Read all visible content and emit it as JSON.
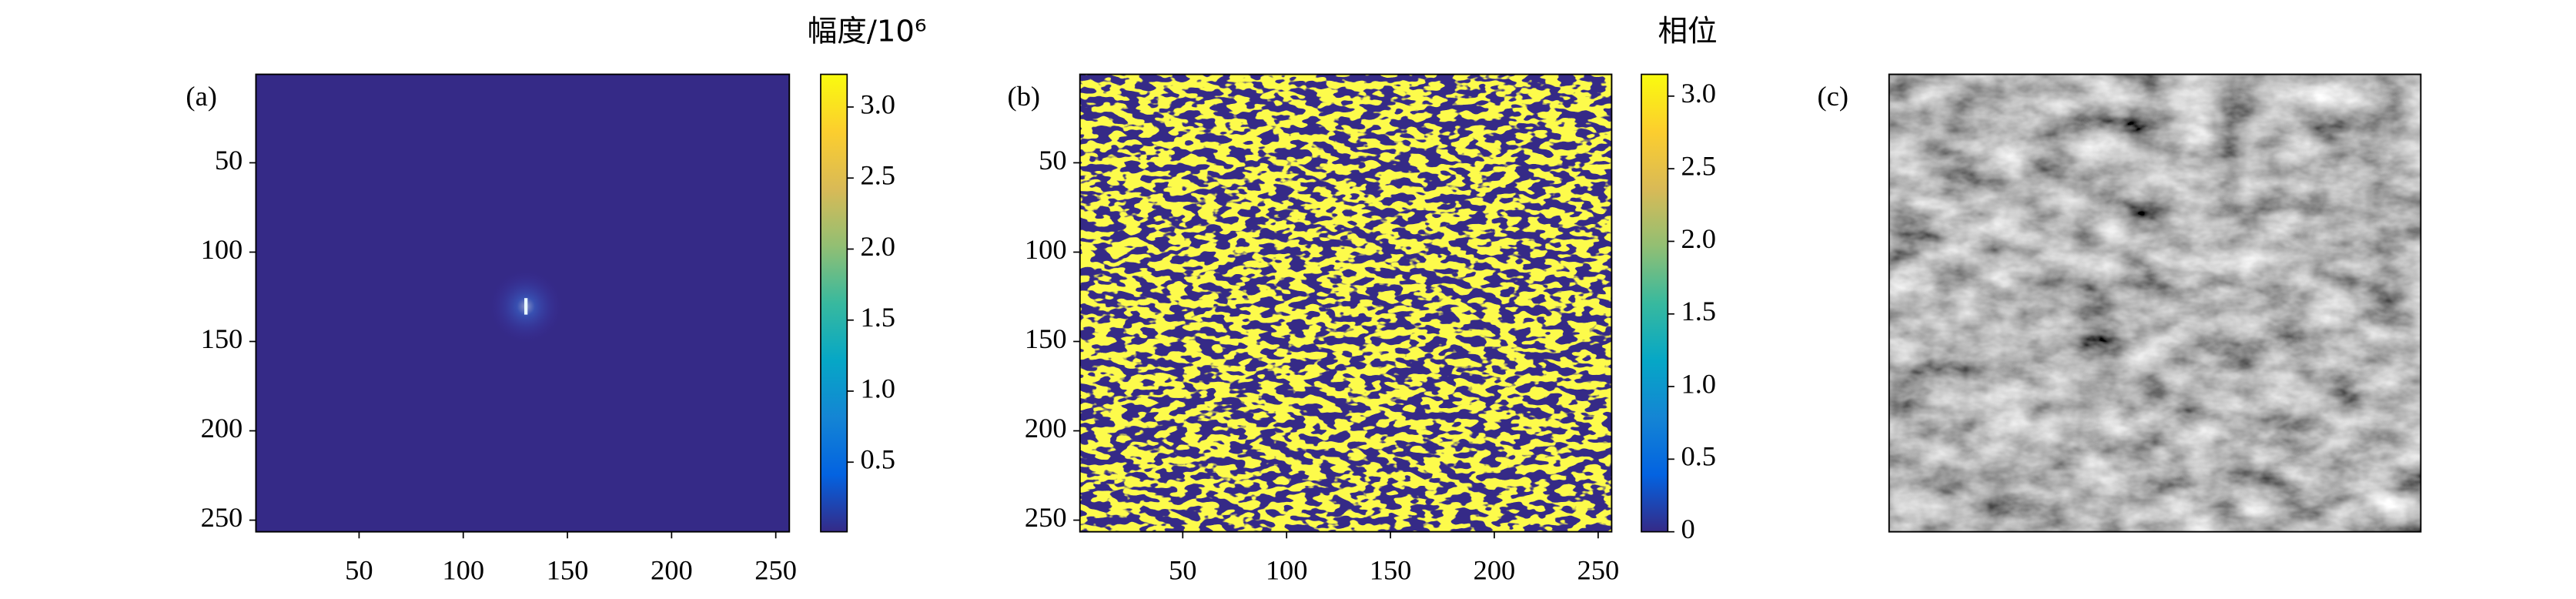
{
  "chart_data": [
    {
      "type": "heatmap",
      "label": "(a)",
      "xlim": [
        0.5,
        256.5
      ],
      "ylim": [
        256.5,
        0.5
      ],
      "xticks": [
        50,
        100,
        150,
        200,
        250
      ],
      "yticks": [
        50,
        100,
        150,
        200,
        250
      ],
      "colorbar": {
        "title": "幅度/10⁶",
        "clim": [
          0.01,
          3.23
        ],
        "ticks": [
          0.5,
          {
            "value": 1,
            "label": "1.0"
          },
          1.5,
          {
            "value": 2,
            "label": "2.0"
          },
          2.5,
          {
            "value": 3,
            "label": "3.0"
          }
        ],
        "colors": [
          "#352a87",
          "#0363e1",
          "#1485d4",
          "#06a7c6",
          "#38b99e",
          "#92bf73",
          "#d9ba56",
          "#fcce2e",
          "#f9fb0e"
        ]
      }
    },
    {
      "type": "heatmap",
      "label": "(b)",
      "xlim": [
        0.5,
        256.5
      ],
      "ylim": [
        256.5,
        0.5
      ],
      "xticks": [
        50,
        100,
        150,
        200,
        250
      ],
      "yticks": [
        50,
        100,
        150,
        200,
        250
      ],
      "colorbar": {
        "title": "相位",
        "clim": [
          0,
          3.15
        ],
        "ticks": [
          0,
          0.5,
          {
            "value": 1,
            "label": "1.0"
          },
          1.5,
          {
            "value": 2,
            "label": "2.0"
          },
          2.5,
          {
            "value": 3,
            "label": "3.0"
          }
        ],
        "colors": [
          "#352a87",
          "#0363e1",
          "#1485d4",
          "#06a7c6",
          "#38b99e",
          "#92bf73",
          "#d9ba56",
          "#fcce2e",
          "#f9fb0e"
        ]
      }
    },
    {
      "type": "image",
      "label": "(c)"
    }
  ]
}
